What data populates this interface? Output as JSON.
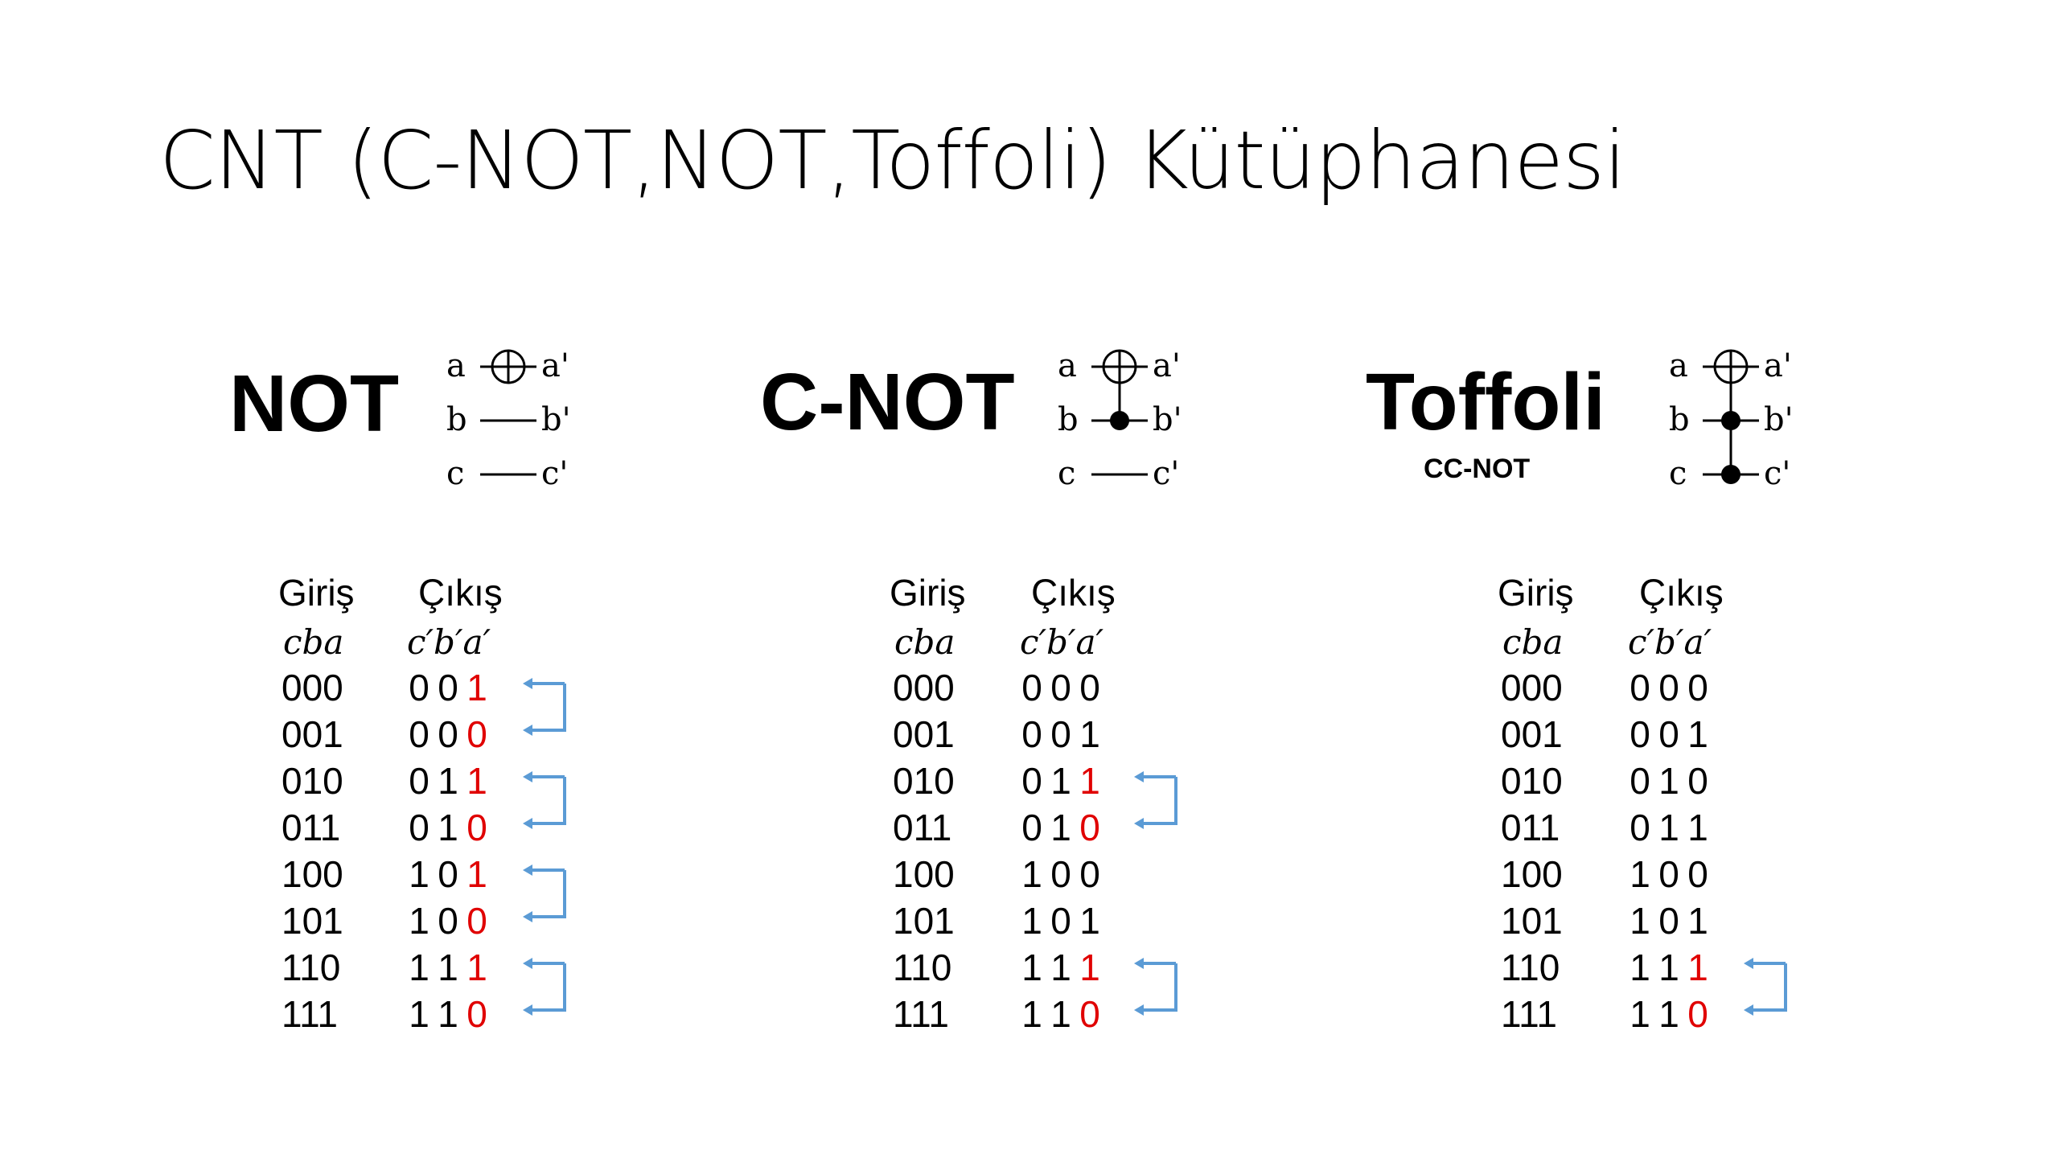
{
  "title": "CNT (C-NOT,NOT,Toffoli) Kütüphanesi",
  "colors": {
    "highlight": "#e00000",
    "arrow": "#5b9bd5",
    "text": "#000000"
  },
  "panels": [
    {
      "name": "NOT",
      "subtitle": "",
      "circuit": {
        "wires": [
          {
            "in": "a",
            "out": "a'",
            "element": "target"
          },
          {
            "in": "b",
            "out": "b'",
            "element": "none"
          },
          {
            "in": "c",
            "out": "c'",
            "element": "none"
          }
        ]
      },
      "table": {
        "input_header": "Giriş",
        "output_header": "Çıkış",
        "input_vars": "cba",
        "output_vars": "c′b′a′",
        "rows": [
          {
            "in": "000",
            "out": [
              "0",
              "0",
              "1"
            ],
            "red": true
          },
          {
            "in": "001",
            "out": [
              "0",
              "0",
              "0"
            ],
            "red": true
          },
          {
            "in": "010",
            "out": [
              "0",
              "1",
              "1"
            ],
            "red": true
          },
          {
            "in": "011",
            "out": [
              "0",
              "1",
              "0"
            ],
            "red": true
          },
          {
            "in": "100",
            "out": [
              "1",
              "0",
              "1"
            ],
            "red": true
          },
          {
            "in": "101",
            "out": [
              "1",
              "0",
              "0"
            ],
            "red": true
          },
          {
            "in": "110",
            "out": [
              "1",
              "1",
              "1"
            ],
            "red": true
          },
          {
            "in": "111",
            "out": [
              "1",
              "1",
              "0"
            ],
            "red": true
          }
        ],
        "swap_pairs": [
          [
            0,
            1
          ],
          [
            2,
            3
          ],
          [
            4,
            5
          ],
          [
            6,
            7
          ]
        ]
      }
    },
    {
      "name": "C-NOT",
      "subtitle": "",
      "circuit": {
        "wires": [
          {
            "in": "a",
            "out": "a'",
            "element": "target"
          },
          {
            "in": "b",
            "out": "b'",
            "element": "control"
          },
          {
            "in": "c",
            "out": "c'",
            "element": "none"
          }
        ]
      },
      "table": {
        "input_header": "Giriş",
        "output_header": "Çıkış",
        "input_vars": "cba",
        "output_vars": "c′b′a′",
        "rows": [
          {
            "in": "000",
            "out": [
              "0",
              "0",
              "0"
            ],
            "red": false
          },
          {
            "in": "001",
            "out": [
              "0",
              "0",
              "1"
            ],
            "red": false
          },
          {
            "in": "010",
            "out": [
              "0",
              "1",
              "1"
            ],
            "red": true
          },
          {
            "in": "011",
            "out": [
              "0",
              "1",
              "0"
            ],
            "red": true
          },
          {
            "in": "100",
            "out": [
              "1",
              "0",
              "0"
            ],
            "red": false
          },
          {
            "in": "101",
            "out": [
              "1",
              "0",
              "1"
            ],
            "red": false
          },
          {
            "in": "110",
            "out": [
              "1",
              "1",
              "1"
            ],
            "red": true
          },
          {
            "in": "111",
            "out": [
              "1",
              "1",
              "0"
            ],
            "red": true
          }
        ],
        "swap_pairs": [
          [
            2,
            3
          ],
          [
            6,
            7
          ]
        ]
      }
    },
    {
      "name": "Toffoli",
      "subtitle": "CC-NOT",
      "circuit": {
        "wires": [
          {
            "in": "a",
            "out": "a'",
            "element": "target"
          },
          {
            "in": "b",
            "out": "b'",
            "element": "control"
          },
          {
            "in": "c",
            "out": "c'",
            "element": "control"
          }
        ]
      },
      "table": {
        "input_header": "Giriş",
        "output_header": "Çıkış",
        "input_vars": "cba",
        "output_vars": "c′b′a′",
        "rows": [
          {
            "in": "000",
            "out": [
              "0",
              "0",
              "0"
            ],
            "red": false
          },
          {
            "in": "001",
            "out": [
              "0",
              "0",
              "1"
            ],
            "red": false
          },
          {
            "in": "010",
            "out": [
              "0",
              "1",
              "0"
            ],
            "red": false
          },
          {
            "in": "011",
            "out": [
              "0",
              "1",
              "1"
            ],
            "red": false
          },
          {
            "in": "100",
            "out": [
              "1",
              "0",
              "0"
            ],
            "red": false
          },
          {
            "in": "101",
            "out": [
              "1",
              "0",
              "1"
            ],
            "red": false
          },
          {
            "in": "110",
            "out": [
              "1",
              "1",
              "1"
            ],
            "red": true
          },
          {
            "in": "111",
            "out": [
              "1",
              "1",
              "0"
            ],
            "red": true
          }
        ],
        "swap_pairs": [
          [
            6,
            7
          ]
        ]
      }
    }
  ]
}
